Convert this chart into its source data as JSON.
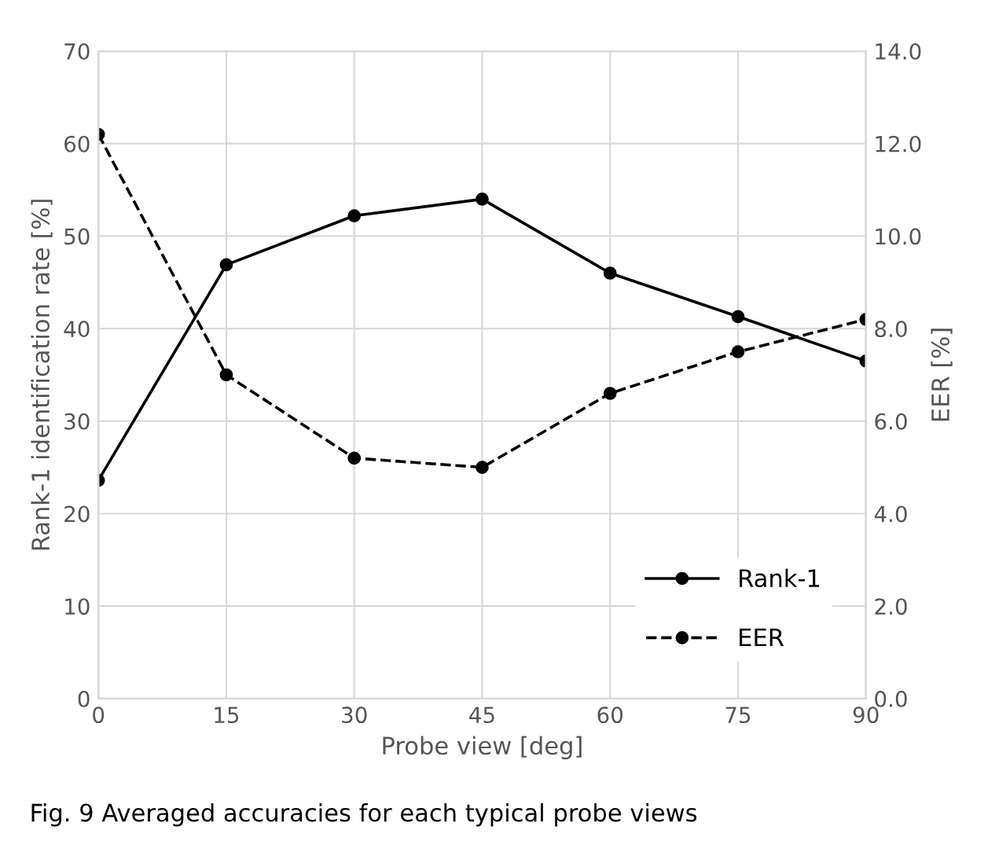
{
  "chart_data": {
    "type": "line",
    "xlabel": "Probe view [deg]",
    "ylabel": "Rank-1 identification rate [%]",
    "y2label": "EER [%]",
    "x": [
      0,
      15,
      30,
      45,
      60,
      75,
      90
    ],
    "series": [
      {
        "name": "Rank-1",
        "color": "#000000",
        "line_style": "solid",
        "values": [
          23.6,
          46.9,
          52.2,
          54.0,
          46.0,
          41.3,
          36.5
        ]
      },
      {
        "name": "EER",
        "color": "#000000",
        "line_style": "dashed",
        "axis": "y2",
        "values": [
          12.2,
          7.0,
          5.2,
          5.0,
          6.6,
          7.5,
          8.2
        ]
      }
    ],
    "xlim": [
      0,
      90
    ],
    "xticks": [
      0,
      15,
      30,
      45,
      60,
      75,
      90
    ],
    "ylim": [
      0,
      70
    ],
    "yticks": [
      0,
      10,
      20,
      30,
      40,
      50,
      60,
      70
    ],
    "y2lim": [
      0,
      14
    ],
    "y2ticks": [
      {
        "value": 0,
        "label": "0.0"
      },
      {
        "value": 2,
        "label": "2.0"
      },
      {
        "value": 4,
        "label": "4.0"
      },
      {
        "value": 6,
        "label": "6.0"
      },
      {
        "value": 8,
        "label": "8.0"
      },
      {
        "value": 10,
        "label": "10.0"
      },
      {
        "value": 12,
        "label": "12.0"
      },
      {
        "value": 14,
        "label": "14.0"
      }
    ],
    "grid": true,
    "legend": "bottom right",
    "marker": "circle",
    "annotations": [
      "Fig. 9 Averaged accuracies for each typical probe views"
    ]
  }
}
